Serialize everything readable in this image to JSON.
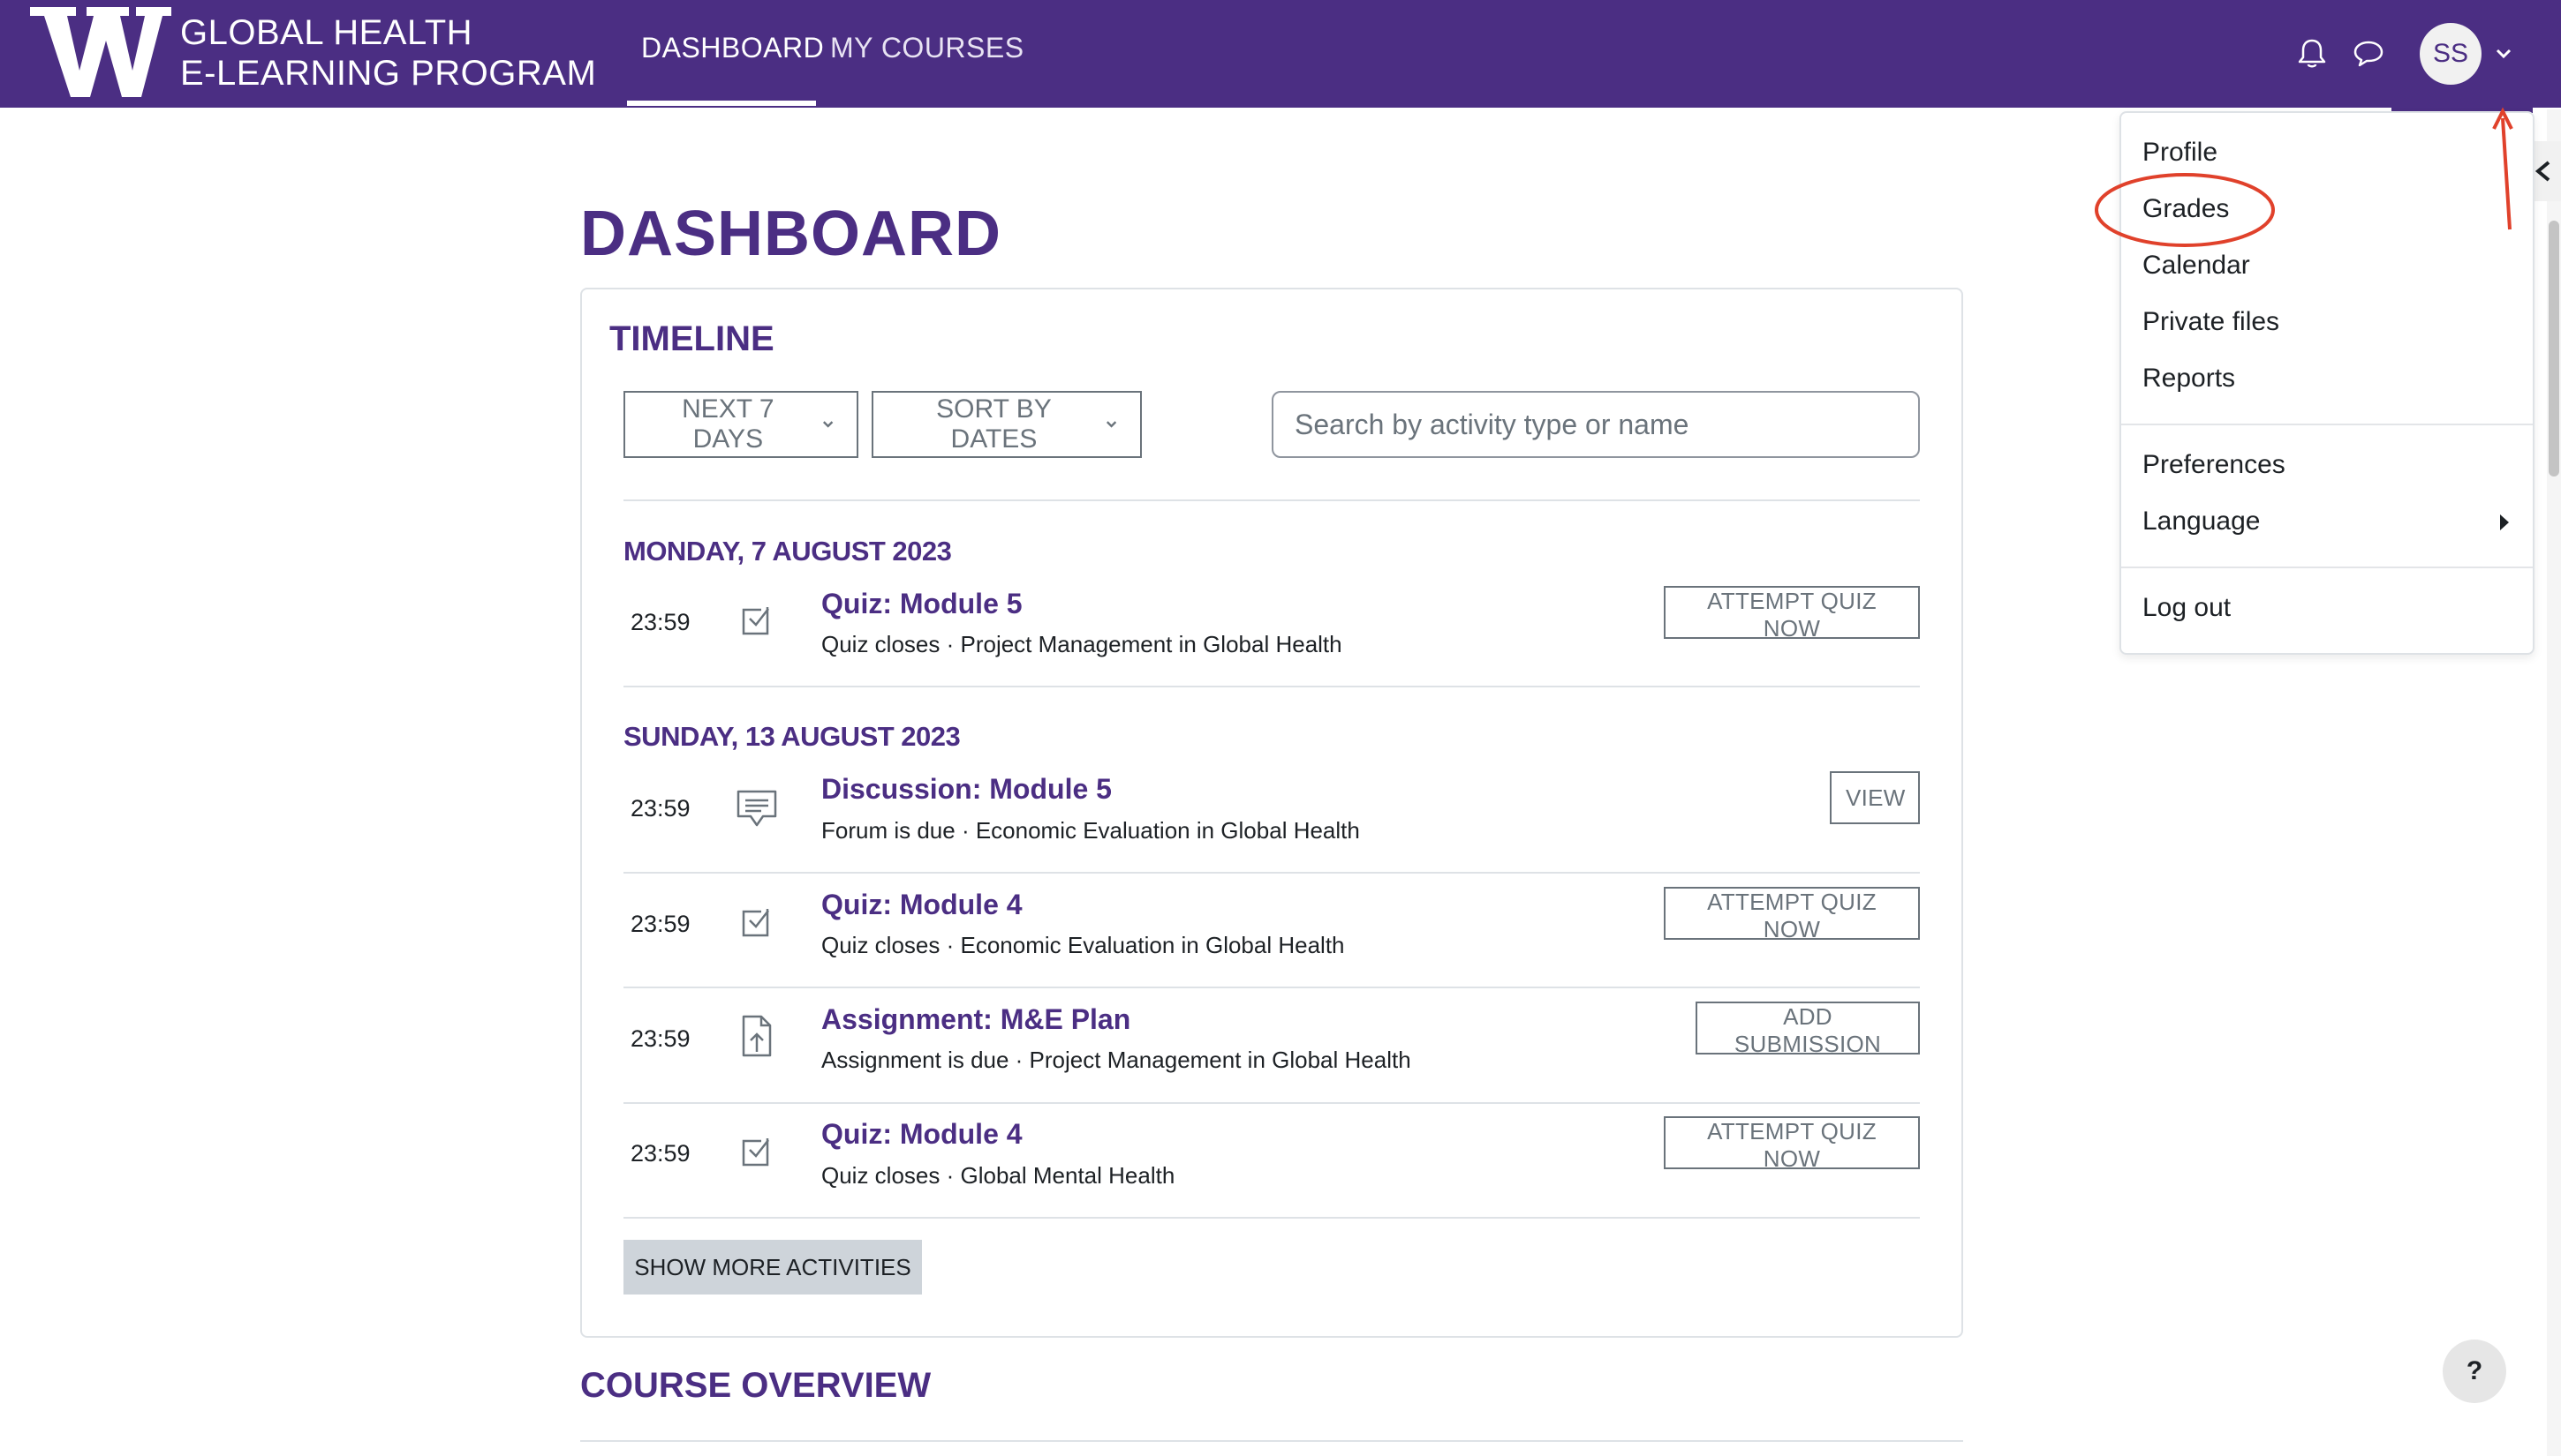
{
  "header": {
    "brand_line1": "GLOBAL HEALTH",
    "brand_line2": "E-LEARNING PROGRAM",
    "nav": [
      {
        "label": "DASHBOARD",
        "active": true
      },
      {
        "label": "MY COURSES",
        "active": false
      }
    ],
    "icons": [
      "bell-icon",
      "chat-icon"
    ],
    "avatar_initials": "SS"
  },
  "page": {
    "title": "DASHBOARD"
  },
  "timeline": {
    "title": "TIMELINE",
    "filter_label": "NEXT 7 DAYS",
    "sort_label": "SORT BY DATES",
    "search_placeholder": "Search by activity type or name",
    "groups": [
      {
        "date": "MONDAY, 7 AUGUST 2023",
        "events": [
          {
            "time": "23:59",
            "icon": "quiz-checkbox-icon",
            "title": "Quiz: Module 5",
            "subtitle": "Quiz closes · Project Management in Global Health",
            "action": "ATTEMPT QUIZ NOW"
          }
        ]
      },
      {
        "date": "SUNDAY, 13 AUGUST 2023",
        "events": [
          {
            "time": "23:59",
            "icon": "forum-icon",
            "title": "Discussion: Module 5",
            "subtitle": "Forum is due · Economic Evaluation in Global Health",
            "action": "VIEW"
          },
          {
            "time": "23:59",
            "icon": "quiz-checkbox-icon",
            "title": "Quiz: Module 4",
            "subtitle": "Quiz closes · Economic Evaluation in Global Health",
            "action": "ATTEMPT QUIZ NOW"
          },
          {
            "time": "23:59",
            "icon": "assignment-upload-icon",
            "title": "Assignment: M&E Plan",
            "subtitle": "Assignment is due · Project Management in Global Health",
            "action": "ADD SUBMISSION"
          },
          {
            "time": "23:59",
            "icon": "quiz-checkbox-icon",
            "title": "Quiz: Module 4",
            "subtitle": "Quiz closes · Global Mental Health",
            "action": "ATTEMPT QUIZ NOW"
          }
        ]
      }
    ],
    "show_more": "SHOW MORE ACTIVITIES"
  },
  "course_overview": {
    "title": "COURSE OVERVIEW"
  },
  "user_menu": {
    "items": [
      "Profile",
      "Grades",
      "Calendar",
      "Private files",
      "Reports"
    ],
    "items2": [
      "Preferences",
      "Language"
    ],
    "items3": [
      "Log out"
    ]
  },
  "help": {
    "label": "?"
  },
  "colors": {
    "brand": "#4b2e83",
    "annotation": "#e0412b"
  }
}
